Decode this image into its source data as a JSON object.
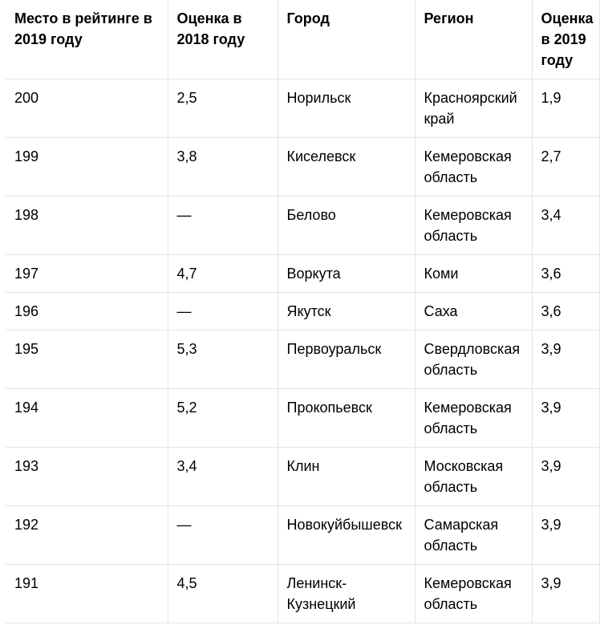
{
  "table": {
    "headers": [
      "Место в рейтинге в 2019 году",
      "Оценка в 2018 году",
      "Город",
      "Регион",
      "Оценка в 2019 году"
    ],
    "rows": [
      [
        "200",
        "2,5",
        "Норильск",
        "Красноярский край",
        "1,9"
      ],
      [
        "199",
        "3,8",
        "Киселевск",
        "Кемеровская область",
        "2,7"
      ],
      [
        "198",
        "—",
        "Белово",
        "Кемеровская область",
        "3,4"
      ],
      [
        "197",
        "4,7",
        "Воркута",
        "Коми",
        "3,6"
      ],
      [
        "196",
        "—",
        "Якутск",
        "Саха",
        "3,6"
      ],
      [
        "195",
        "5,3",
        "Первоуральск",
        "Свердловская область",
        "3,9"
      ],
      [
        "194",
        "5,2",
        "Прокопьевск",
        "Кемеровская область",
        "3,9"
      ],
      [
        "193",
        "3,4",
        "Клин",
        "Московская область",
        "3,9"
      ],
      [
        "192",
        "—",
        "Новокуйбышевск",
        "Самарская область",
        "3,9"
      ],
      [
        "191",
        "4,5",
        "Ленинск-Кузнецкий",
        "Кемеровская область",
        "3,9"
      ]
    ]
  }
}
